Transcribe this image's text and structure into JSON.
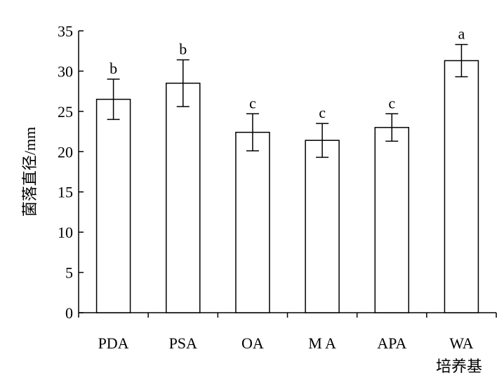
{
  "chart_data": {
    "type": "bar",
    "categories": [
      "PDA",
      "PSA",
      "OA",
      "M A",
      "APA",
      "WA"
    ],
    "values": [
      26.5,
      28.5,
      22.4,
      21.4,
      23.0,
      31.3
    ],
    "errors": [
      2.5,
      2.9,
      2.3,
      2.1,
      1.7,
      2.0
    ],
    "significance": [
      "b",
      "b",
      "c",
      "c",
      "c",
      "a"
    ],
    "xlabel": "培养基",
    "ylabel": "菌落直径/mm",
    "ylim": [
      0,
      35
    ],
    "yticks": [
      0,
      5,
      10,
      15,
      20,
      25,
      30,
      35
    ],
    "bar_fill": "#ffffff",
    "bar_stroke": "#000000"
  }
}
